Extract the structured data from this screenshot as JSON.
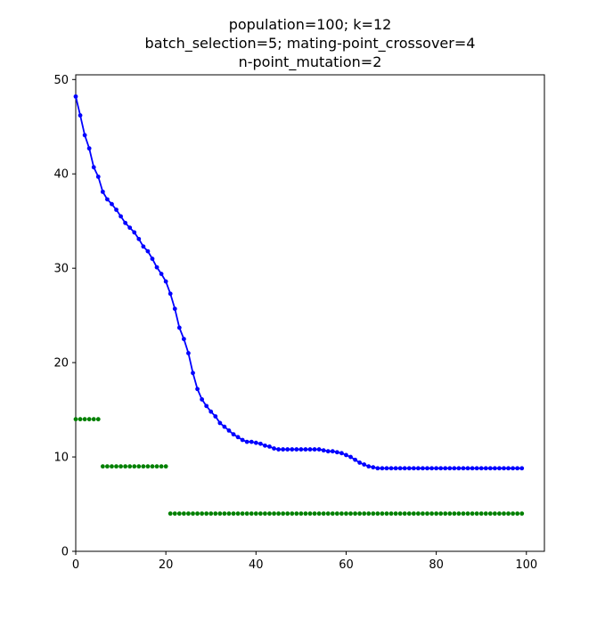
{
  "chart_data": {
    "type": "line",
    "title_lines": [
      "population=100; k=12",
      "batch_selection=5; mating-point_crossover=4",
      "n-point_mutation=2"
    ],
    "xlabel": "",
    "ylabel": "",
    "xlim": [
      0,
      104
    ],
    "ylim": [
      0,
      50.5
    ],
    "xticks": [
      0,
      20,
      40,
      60,
      80,
      100
    ],
    "yticks": [
      0,
      10,
      20,
      30,
      40,
      50
    ],
    "grid": false,
    "series": [
      {
        "style": "line+markers",
        "color": "#0000ff",
        "x": [
          0,
          1,
          2,
          3,
          4,
          5,
          6,
          7,
          8,
          9,
          10,
          11,
          12,
          13,
          14,
          15,
          16,
          17,
          18,
          19,
          20,
          21,
          22,
          23,
          24,
          25,
          26,
          27,
          28,
          29,
          30,
          31,
          32,
          33,
          34,
          35,
          36,
          37,
          38,
          39,
          40,
          41,
          42,
          43,
          44,
          45,
          46,
          47,
          48,
          49,
          50,
          51,
          52,
          53,
          54,
          55,
          56,
          57,
          58,
          59,
          60,
          61,
          62,
          63,
          64,
          65,
          66,
          67,
          68,
          69,
          70,
          71,
          72,
          73,
          74,
          75,
          76,
          77,
          78,
          79,
          80,
          81,
          82,
          83,
          84,
          85,
          86,
          87,
          88,
          89,
          90,
          91,
          92,
          93,
          94,
          95,
          96,
          97,
          98,
          99
        ],
        "y": [
          48.2,
          46.2,
          44.1,
          42.7,
          40.7,
          39.7,
          38.1,
          37.3,
          36.8,
          36.2,
          35.5,
          34.8,
          34.3,
          33.8,
          33.1,
          32.3,
          31.8,
          31.0,
          30.1,
          29.4,
          28.6,
          27.3,
          25.7,
          23.7,
          22.5,
          21.0,
          18.9,
          17.2,
          16.1,
          15.4,
          14.8,
          14.3,
          13.6,
          13.2,
          12.8,
          12.4,
          12.1,
          11.8,
          11.6,
          11.6,
          11.5,
          11.4,
          11.2,
          11.1,
          10.9,
          10.8,
          10.8,
          10.8,
          10.8,
          10.8,
          10.8,
          10.8,
          10.8,
          10.8,
          10.8,
          10.7,
          10.6,
          10.6,
          10.5,
          10.4,
          10.2,
          10.0,
          9.7,
          9.4,
          9.2,
          9.0,
          8.9,
          8.8,
          8.8,
          8.8,
          8.8,
          8.8,
          8.8,
          8.8,
          8.8,
          8.8,
          8.8,
          8.8,
          8.8,
          8.8,
          8.8,
          8.8,
          8.8,
          8.8,
          8.8,
          8.8,
          8.8,
          8.8,
          8.8,
          8.8,
          8.8,
          8.8,
          8.8,
          8.8,
          8.8,
          8.8,
          8.8,
          8.8,
          8.8,
          8.8
        ]
      },
      {
        "style": "markers",
        "color": "#008000",
        "x": [
          0,
          1,
          2,
          3,
          4,
          5,
          6,
          7,
          8,
          9,
          10,
          11,
          12,
          13,
          14,
          15,
          16,
          17,
          18,
          19,
          20,
          21,
          22,
          23,
          24,
          25,
          26,
          27,
          28,
          29,
          30,
          31,
          32,
          33,
          34,
          35,
          36,
          37,
          38,
          39,
          40,
          41,
          42,
          43,
          44,
          45,
          46,
          47,
          48,
          49,
          50,
          51,
          52,
          53,
          54,
          55,
          56,
          57,
          58,
          59,
          60,
          61,
          62,
          63,
          64,
          65,
          66,
          67,
          68,
          69,
          70,
          71,
          72,
          73,
          74,
          75,
          76,
          77,
          78,
          79,
          80,
          81,
          82,
          83,
          84,
          85,
          86,
          87,
          88,
          89,
          90,
          91,
          92,
          93,
          94,
          95,
          96,
          97,
          98,
          99
        ],
        "y": [
          14,
          14,
          14,
          14,
          14,
          14,
          9,
          9,
          9,
          9,
          9,
          9,
          9,
          9,
          9,
          9,
          9,
          9,
          9,
          9,
          9,
          4,
          4,
          4,
          4,
          4,
          4,
          4,
          4,
          4,
          4,
          4,
          4,
          4,
          4,
          4,
          4,
          4,
          4,
          4,
          4,
          4,
          4,
          4,
          4,
          4,
          4,
          4,
          4,
          4,
          4,
          4,
          4,
          4,
          4,
          4,
          4,
          4,
          4,
          4,
          4,
          4,
          4,
          4,
          4,
          4,
          4,
          4,
          4,
          4,
          4,
          4,
          4,
          4,
          4,
          4,
          4,
          4,
          4,
          4,
          4,
          4,
          4,
          4,
          4,
          4,
          4,
          4,
          4,
          4,
          4,
          4,
          4,
          4,
          4,
          4,
          4,
          4,
          4,
          4
        ]
      }
    ]
  }
}
